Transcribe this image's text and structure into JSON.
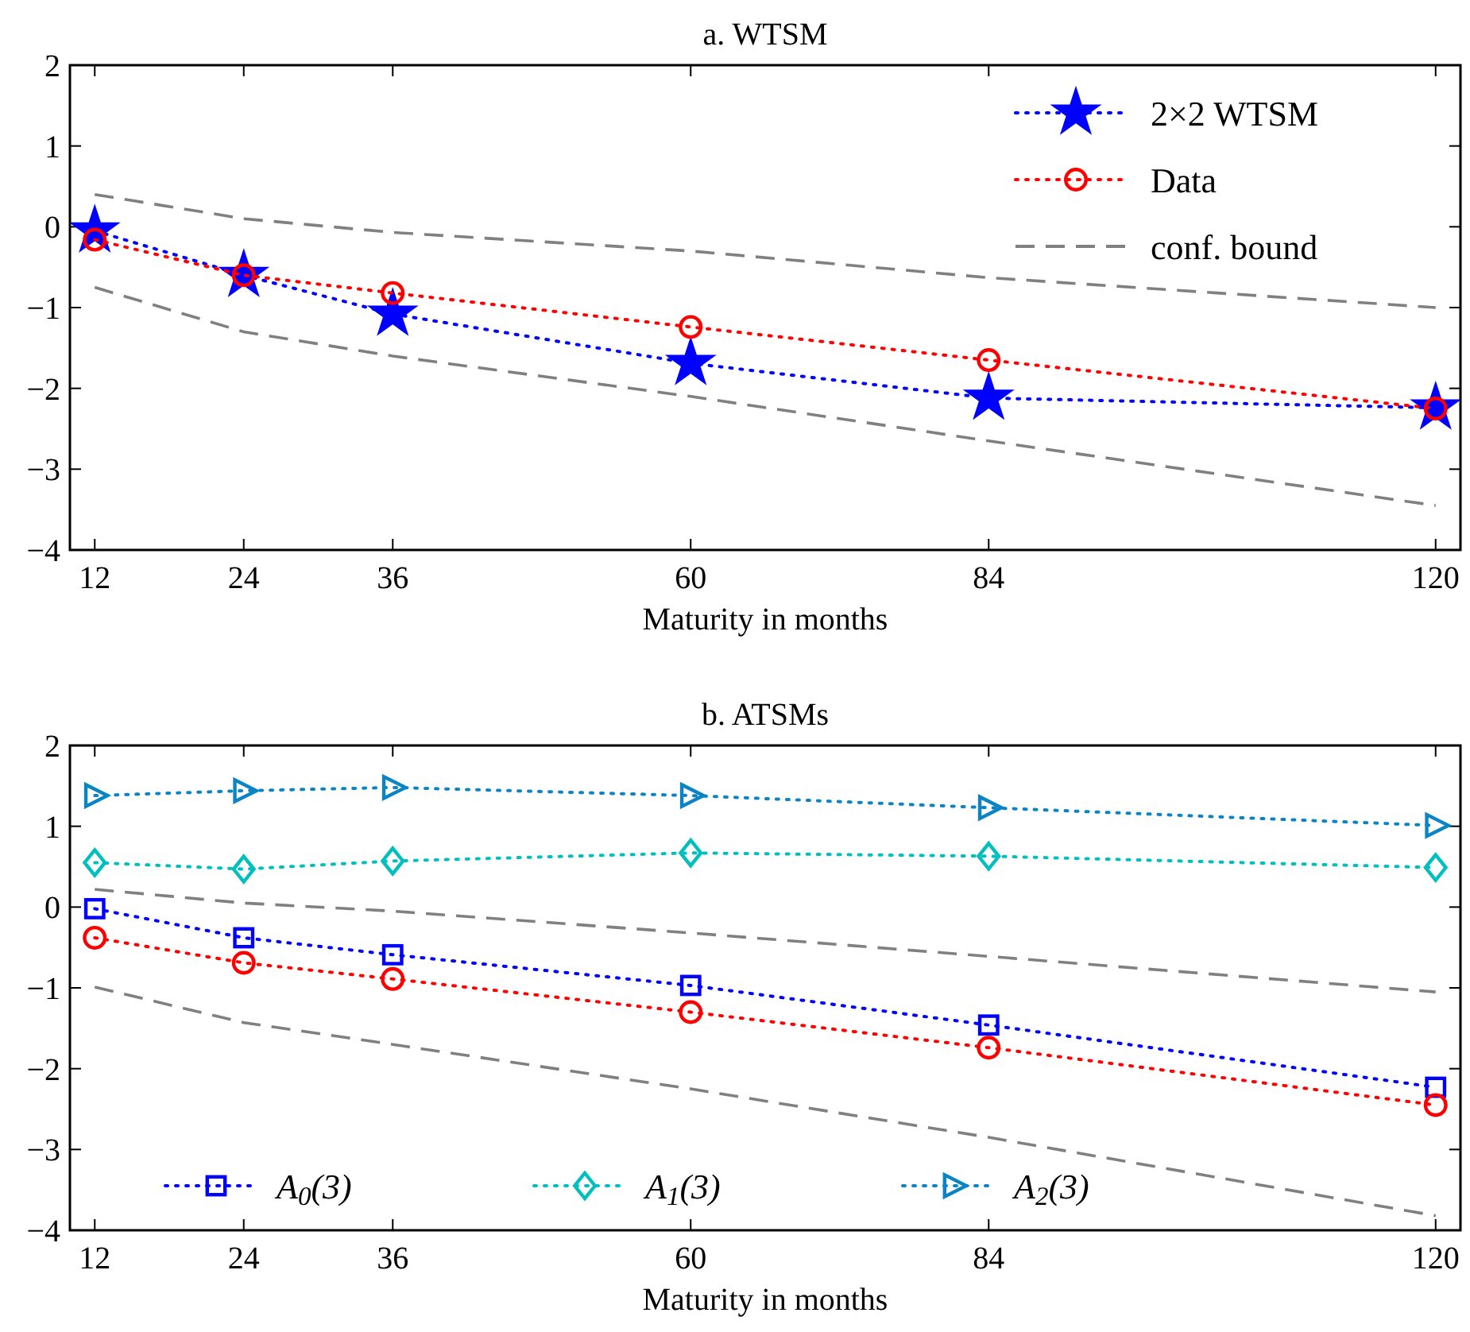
{
  "chart_data": [
    {
      "type": "line",
      "title": "a. WTSM",
      "xlabel": "Maturity in months",
      "x": [
        12,
        24,
        36,
        60,
        84,
        120
      ],
      "xlim": [
        10,
        122
      ],
      "xticks": [
        12,
        24,
        36,
        60,
        84,
        120
      ],
      "ylim": [
        -4,
        2
      ],
      "yticks": [
        -4,
        -3,
        -2,
        -1,
        0,
        1,
        2
      ],
      "grid": false,
      "legend": "top right",
      "series": [
        {
          "name": "2×2 WTSM",
          "color": "#0000ff",
          "marker": "star",
          "line_style": "dotted",
          "values": [
            -0.05,
            -0.6,
            -1.08,
            -1.69,
            -2.12,
            -2.24
          ]
        },
        {
          "name": "Data",
          "color": "#ff0000",
          "marker": "circle",
          "line_style": "dotted",
          "values": [
            -0.16,
            -0.6,
            -0.82,
            -1.24,
            -1.65,
            -2.25
          ]
        },
        {
          "name": "conf. bound",
          "color": "#808080",
          "marker": "none",
          "line_style": "dashed",
          "values": [
            0.4,
            0.1,
            -0.07,
            -0.3,
            -0.63,
            -1.0
          ]
        },
        {
          "color": "#808080",
          "marker": "none",
          "line_style": "dashed",
          "values": [
            -0.75,
            -1.3,
            -1.6,
            -2.1,
            -2.65,
            -3.45
          ]
        }
      ]
    },
    {
      "type": "line",
      "title": "b. ATSMs",
      "xlabel": "Maturity in months",
      "x": [
        12,
        24,
        36,
        60,
        84,
        120
      ],
      "xlim": [
        10,
        122
      ],
      "xticks": [
        12,
        24,
        36,
        60,
        84,
        120
      ],
      "ylim": [
        -4,
        2
      ],
      "yticks": [
        -4,
        -3,
        -2,
        -1,
        0,
        1,
        2
      ],
      "grid": false,
      "legend": "bottom left",
      "series": [
        {
          "name": "A$_{0}$(3)",
          "color": "#0000ff",
          "marker": "square",
          "line_style": "dotted",
          "values": [
            -0.02,
            -0.38,
            -0.59,
            -0.97,
            -1.46,
            -2.23
          ]
        },
        {
          "name": "A$_{1}$(3)",
          "color": "#00bfbf",
          "marker": "diamond",
          "line_style": "dotted",
          "values": [
            0.55,
            0.47,
            0.57,
            0.67,
            0.63,
            0.49
          ]
        },
        {
          "name": "A$_{2}$(3)",
          "color": "#0b84c6",
          "marker": "triangle",
          "line_style": "dotted",
          "values": [
            1.38,
            1.44,
            1.48,
            1.38,
            1.23,
            1.01
          ]
        },
        {
          "color": "#ff0000",
          "marker": "circle",
          "line_style": "dotted",
          "values": [
            -0.38,
            -0.69,
            -0.89,
            -1.3,
            -1.74,
            -2.45
          ]
        },
        {
          "color": "#808080",
          "marker": "none",
          "line_style": "dashed",
          "values": [
            0.22,
            0.05,
            -0.05,
            -0.32,
            -0.61,
            -1.05
          ]
        },
        {
          "color": "#808080",
          "marker": "none",
          "line_style": "dashed",
          "values": [
            -0.99,
            -1.43,
            -1.7,
            -2.25,
            -2.85,
            -3.82
          ]
        }
      ]
    }
  ]
}
